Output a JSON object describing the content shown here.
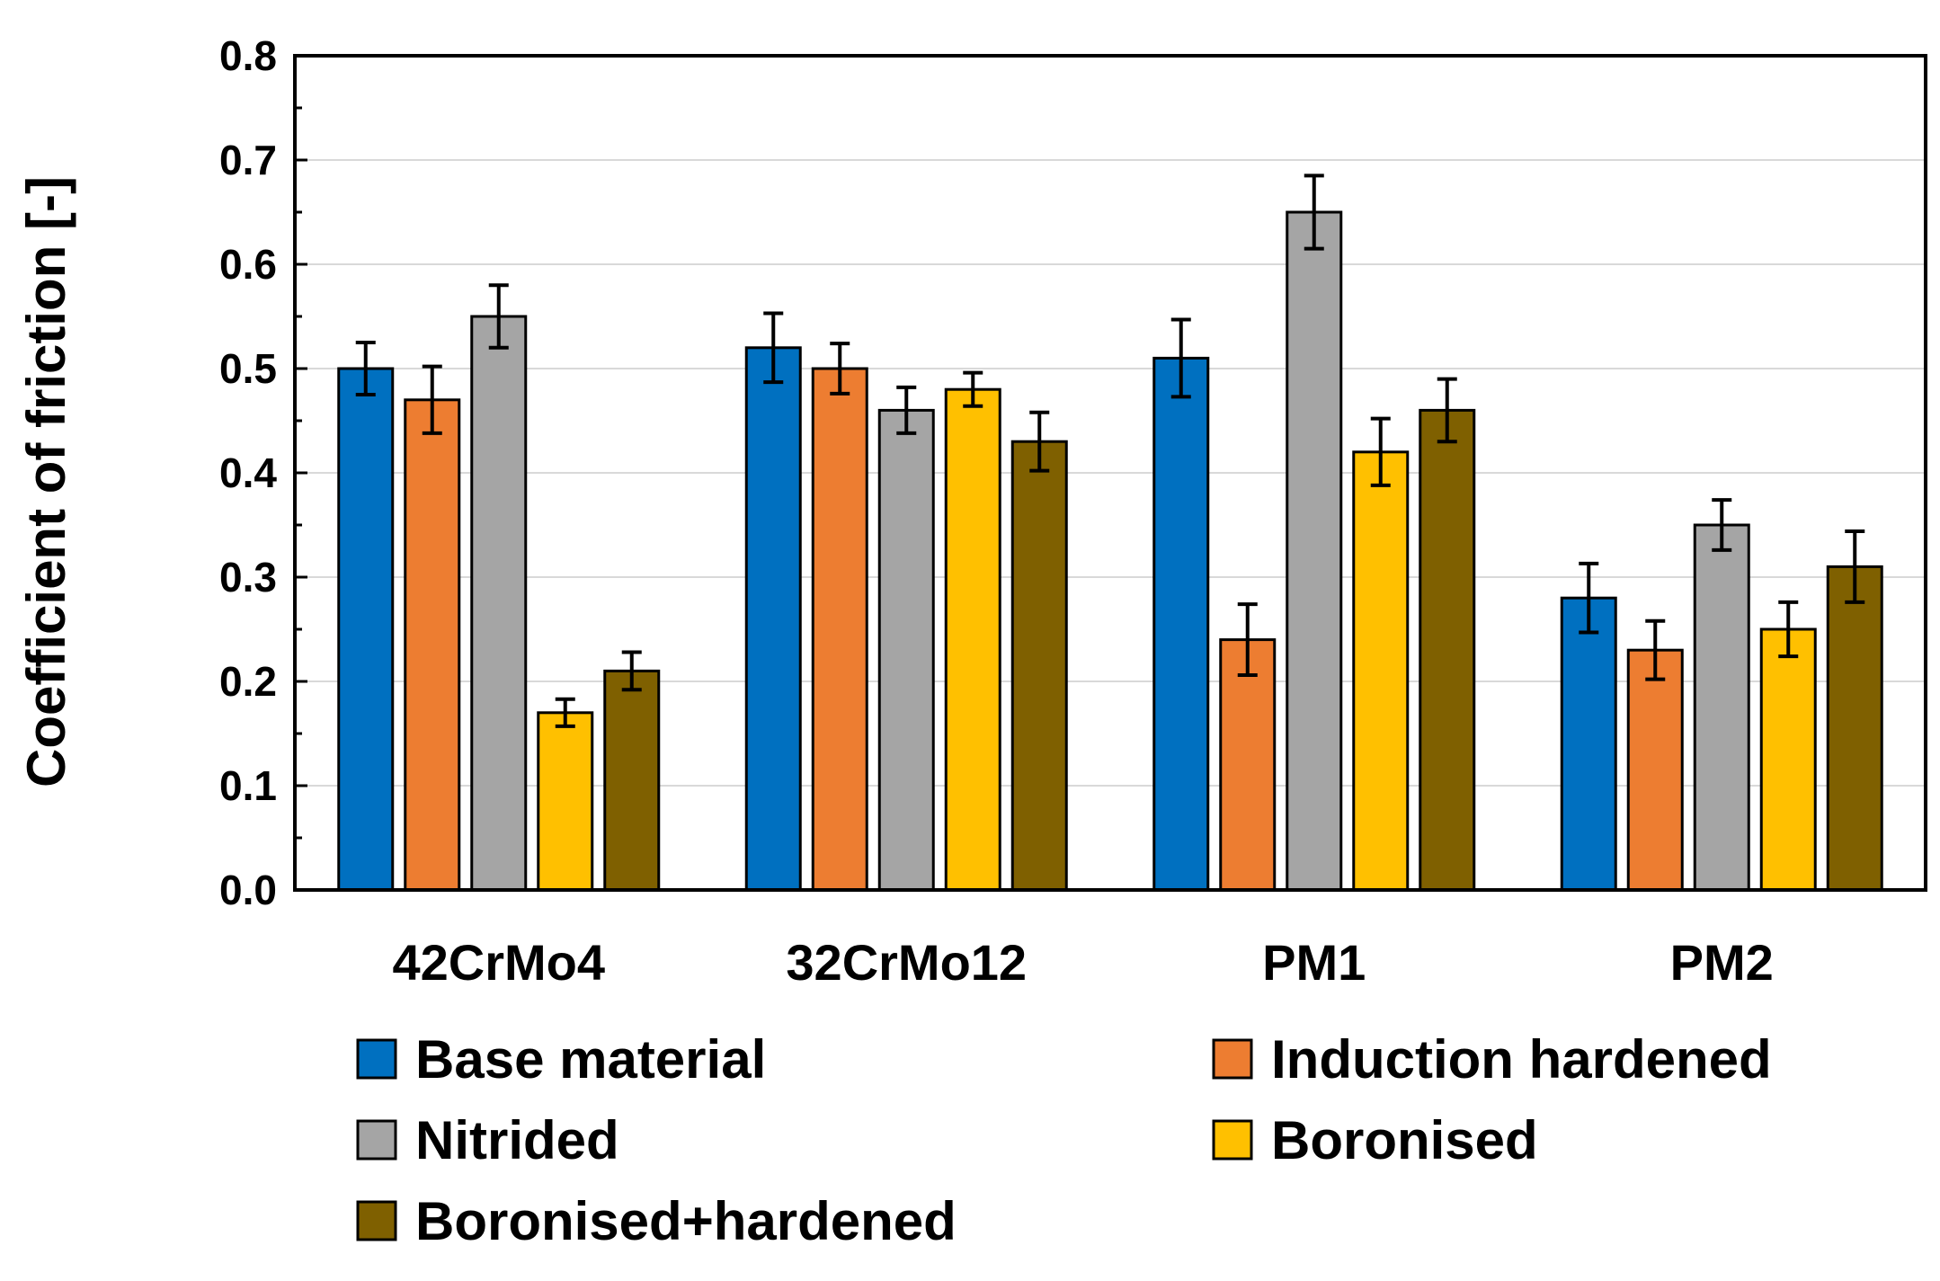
{
  "chart_data": {
    "type": "bar",
    "title": "",
    "xlabel": "",
    "ylabel": "Coefficient of friction [-]",
    "ylim": [
      0,
      0.8
    ],
    "yticks": [
      "0.0",
      "0.1",
      "0.2",
      "0.3",
      "0.4",
      "0.5",
      "0.6",
      "0.7",
      "0.8"
    ],
    "grid": true,
    "legend_position": "bottom",
    "categories": [
      "42CrMo4",
      "32CrMo12",
      "PM1",
      "PM2"
    ],
    "series": [
      {
        "name": "Base material",
        "color": "#0070C0",
        "values": [
          0.5,
          0.52,
          0.51,
          0.28
        ],
        "errors": [
          0.025,
          0.033,
          0.037,
          0.033
        ]
      },
      {
        "name": "Induction hardened",
        "color": "#ED7D31",
        "values": [
          0.47,
          0.5,
          0.24,
          0.23
        ],
        "errors": [
          0.032,
          0.024,
          0.034,
          0.028
        ]
      },
      {
        "name": "Nitrided",
        "color": "#A5A5A5",
        "values": [
          0.55,
          0.46,
          0.65,
          0.35
        ],
        "errors": [
          0.03,
          0.022,
          0.035,
          0.024
        ]
      },
      {
        "name": "Boronised",
        "color": "#FFC000",
        "values": [
          0.17,
          0.48,
          0.42,
          0.25
        ],
        "errors": [
          0.013,
          0.016,
          0.032,
          0.026
        ]
      },
      {
        "name": "Boronised+hardened",
        "color": "#7F6000",
        "values": [
          0.21,
          0.43,
          0.46,
          0.31
        ],
        "errors": [
          0.018,
          0.028,
          0.03,
          0.034
        ]
      }
    ]
  }
}
